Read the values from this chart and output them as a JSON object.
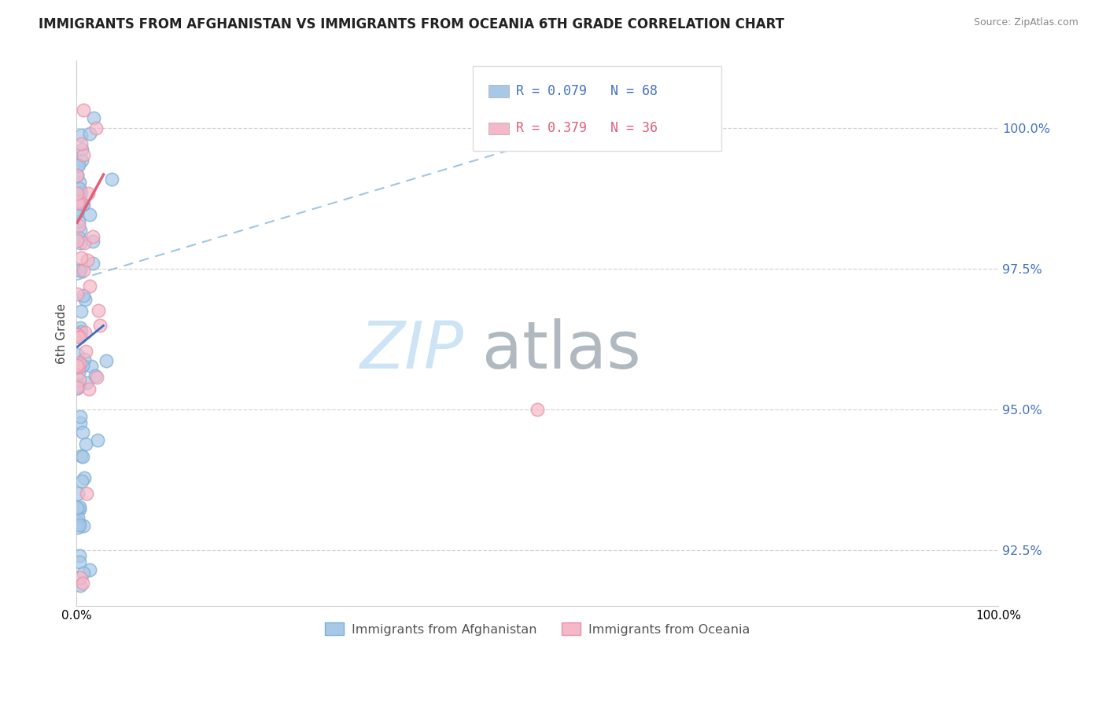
{
  "title": "IMMIGRANTS FROM AFGHANISTAN VS IMMIGRANTS FROM OCEANIA 6TH GRADE CORRELATION CHART",
  "source": "Source: ZipAtlas.com",
  "ylabel": "6th Grade",
  "ytick_values": [
    92.5,
    95.0,
    97.5,
    100.0
  ],
  "legend_blue_label": "Immigrants from Afghanistan",
  "legend_pink_label": "Immigrants from Oceania",
  "legend_r_blue": "R = 0.079",
  "legend_n_blue": "N = 68",
  "legend_r_pink": "R = 0.379",
  "legend_n_pink": "N = 36",
  "blue_color": "#a8c8e8",
  "blue_edge_color": "#7aafd4",
  "pink_color": "#f4b8c8",
  "pink_edge_color": "#e890a8",
  "trend_blue_color": "#3a6fbd",
  "trend_pink_color": "#e0607a",
  "dash_color": "#a8c8e8",
  "xmin": 0.0,
  "xmax": 100.0,
  "ymin": 91.5,
  "ymax": 101.2,
  "background_color": "#ffffff",
  "grid_color": "#cccccc",
  "ytick_color": "#4472c4",
  "title_fontsize": 12,
  "watermark_zip_color": "#cce4f5",
  "watermark_atlas_color": "#b0b8c0"
}
